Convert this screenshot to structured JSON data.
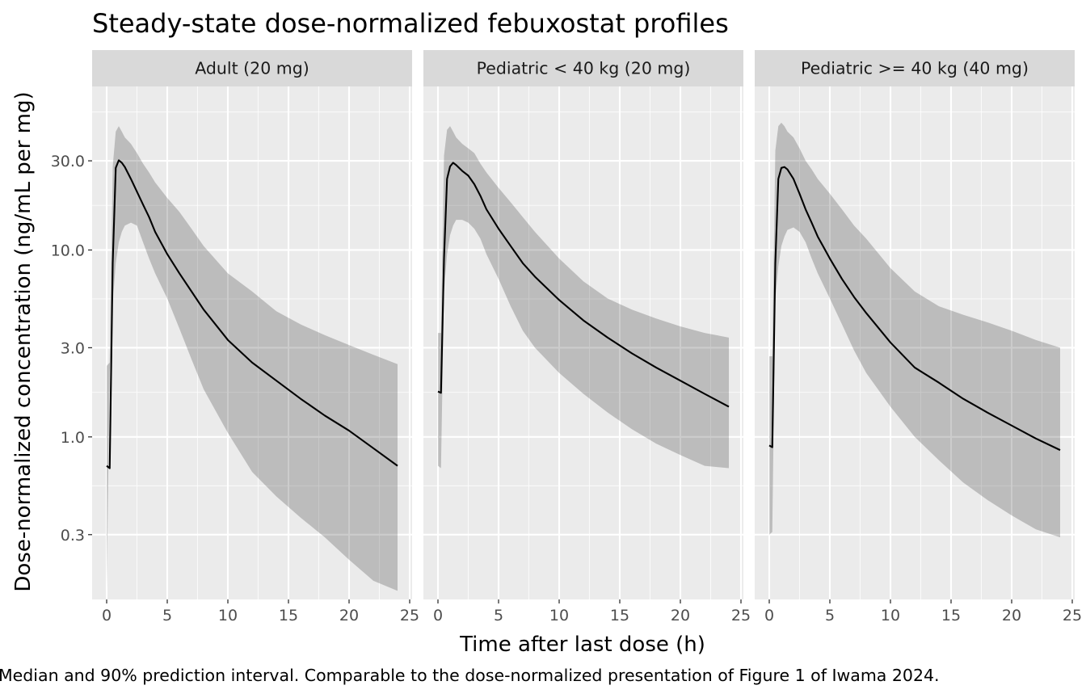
{
  "chart_data": {
    "type": "line",
    "title": "Steady-state dose-normalized febuxostat profiles",
    "xlabel": "Time after last dose (h)",
    "ylabel": "Dose-normalized concentration (ng/mL per mg)",
    "caption": "Median and 90% prediction interval. Comparable to the dose-normalized presentation of Figure 1 of Iwama 2024.",
    "xlim": [
      -1.2,
      25.2
    ],
    "x_ticks": [
      0,
      5,
      10,
      15,
      20,
      25
    ],
    "x_tick_labels": [
      "0",
      "5",
      "10",
      "15",
      "20",
      "25"
    ],
    "y_scale": "log10",
    "ylim": [
      0.135,
      75
    ],
    "y_ticks": [
      0.3,
      1,
      3,
      10,
      30
    ],
    "y_tick_labels": [
      "0.3",
      "1.0",
      "3.0",
      "10.0",
      "30.0"
    ],
    "y_minor_ticks": [
      0.5477,
      1.732,
      5.477,
      17.32,
      54.77
    ],
    "grid": true,
    "colors": {
      "median": "#000000",
      "interval": "#BDBDBD",
      "panel": "#EBEBEB",
      "strip": "#D9D9D9"
    },
    "panels": [
      {
        "strip": "Adult (20 mg)",
        "x": [
          0,
          0.25,
          0.5,
          0.75,
          1,
          1.25,
          1.5,
          2,
          2.5,
          3,
          3.5,
          4,
          5,
          6,
          7,
          8,
          10,
          12,
          14,
          16,
          18,
          20,
          22,
          24
        ],
        "median": [
          0.7,
          0.68,
          8.5,
          27.5,
          30.2,
          29.3,
          27.8,
          24,
          20.5,
          17.5,
          15,
          12.5,
          9.5,
          7.5,
          6,
          4.8,
          3.3,
          2.5,
          2,
          1.6,
          1.3,
          1.08,
          0.87,
          0.7
        ],
        "p05": [
          0.15,
          2.2,
          5.2,
          8.5,
          11,
          12.5,
          13.5,
          14,
          13.5,
          11,
          9,
          7.5,
          5.5,
          3.8,
          2.6,
          1.8,
          1.05,
          0.65,
          0.48,
          0.37,
          0.29,
          0.22,
          0.17,
          0.15
        ],
        "p95": [
          2.4,
          2.5,
          28,
          43,
          46,
          43,
          40,
          37,
          33,
          29,
          26,
          23,
          19,
          16,
          13,
          10.5,
          7.5,
          6,
          4.7,
          4,
          3.5,
          3.1,
          2.75,
          2.45
        ]
      },
      {
        "strip": "Pediatric < 40 kg (20 mg)",
        "x": [
          0,
          0.25,
          0.5,
          0.75,
          1,
          1.25,
          1.5,
          2,
          2.5,
          3,
          3.5,
          4,
          5,
          6,
          7,
          8,
          10,
          12,
          14,
          16,
          18,
          20,
          22,
          24
        ],
        "median": [
          1.75,
          1.72,
          9,
          24,
          28,
          29.3,
          28.5,
          26.5,
          25,
          22.5,
          19.5,
          16.5,
          13,
          10.5,
          8.5,
          7.2,
          5.4,
          4.2,
          3.4,
          2.8,
          2.35,
          2,
          1.7,
          1.45
        ],
        "p05": [
          0.7,
          0.68,
          6,
          9.5,
          12,
          13.5,
          14.5,
          14.5,
          14,
          13,
          11.5,
          9.5,
          7,
          5,
          3.7,
          3,
          2.2,
          1.7,
          1.35,
          1.1,
          0.92,
          0.8,
          0.7,
          0.68
        ],
        "p95": [
          3.6,
          3.6,
          32,
          44,
          46,
          43,
          40,
          37,
          35,
          33,
          29,
          26,
          21.5,
          18,
          15,
          12.5,
          9,
          6.8,
          5.5,
          4.8,
          4.3,
          3.9,
          3.6,
          3.4
        ]
      },
      {
        "strip": "Pediatric >= 40 kg (40 mg)",
        "x": [
          0,
          0.25,
          0.5,
          0.75,
          1,
          1.25,
          1.5,
          2,
          2.5,
          3,
          3.5,
          4,
          5,
          6,
          7,
          8,
          10,
          12,
          14,
          16,
          18,
          20,
          22,
          24
        ],
        "median": [
          0.9,
          0.88,
          8.5,
          24,
          27.5,
          27.8,
          27,
          24,
          20,
          16.5,
          14,
          11.8,
          9,
          7,
          5.6,
          4.6,
          3.2,
          2.35,
          1.95,
          1.6,
          1.35,
          1.15,
          0.98,
          0.85
        ],
        "p05": [
          0.3,
          0.31,
          5.5,
          8.2,
          10.5,
          11.8,
          12.8,
          13.2,
          12.5,
          11,
          9,
          7.5,
          5.5,
          4,
          2.9,
          2.2,
          1.45,
          1,
          0.75,
          0.57,
          0.46,
          0.38,
          0.32,
          0.29
        ],
        "p95": [
          2.7,
          2.7,
          34,
          46,
          48,
          46,
          43,
          40,
          35,
          30,
          27,
          24,
          20,
          16.5,
          13.5,
          11.5,
          8,
          6,
          5,
          4.5,
          4.1,
          3.7,
          3.3,
          3
        ]
      }
    ]
  }
}
